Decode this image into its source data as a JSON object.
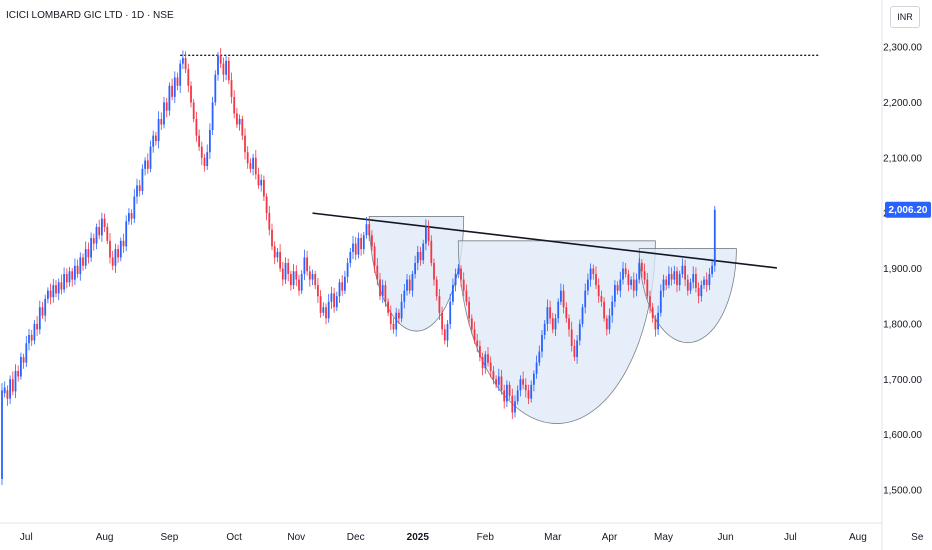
{
  "chart_data": {
    "type": "candlestick",
    "title": "ICICI LOMBARD GIC LTD · 1D · NSE",
    "currency": "INR",
    "y_axis": {
      "ylim": [
        1460,
        2340
      ],
      "ticks": [
        {
          "value": 2300,
          "label": "2,300.00"
        },
        {
          "value": 2200,
          "label": "2,200.00"
        },
        {
          "value": 2100,
          "label": "2,100.00"
        },
        {
          "value": 2000,
          "label": "2,000.00"
        },
        {
          "value": 1900,
          "label": "1,900.00"
        },
        {
          "value": 1800,
          "label": "1,800.00"
        },
        {
          "value": 1700,
          "label": "1,700.00"
        },
        {
          "value": 1600,
          "label": "1,600.00"
        },
        {
          "value": 1500,
          "label": "1,500.00"
        }
      ]
    },
    "x_axis": {
      "ticks": [
        {
          "label": "Jul",
          "bar": 10,
          "bold": false
        },
        {
          "label": "Aug",
          "bar": 39,
          "bold": false
        },
        {
          "label": "Sep",
          "bar": 63,
          "bold": false
        },
        {
          "label": "Oct",
          "bar": 87,
          "bold": false
        },
        {
          "label": "Nov",
          "bar": 110,
          "bold": false
        },
        {
          "label": "Dec",
          "bar": 132,
          "bold": false
        },
        {
          "label": "2025",
          "bar": 155,
          "bold": true
        },
        {
          "label": "Feb",
          "bar": 180,
          "bold": false
        },
        {
          "label": "Mar",
          "bar": 205,
          "bold": false
        },
        {
          "label": "Apr",
          "bar": 226,
          "bold": false
        },
        {
          "label": "May",
          "bar": 246,
          "bold": false
        },
        {
          "label": "Jun",
          "bar": 269,
          "bold": false
        },
        {
          "label": "Jul",
          "bar": 293,
          "bold": false
        },
        {
          "label": "Aug",
          "bar": 318,
          "bold": false
        },
        {
          "label": "Se",
          "bar": 340,
          "bold": false
        }
      ]
    },
    "last_price": {
      "value": 2006.2,
      "label": "2,006.20"
    },
    "colors": {
      "up": "#2962ff",
      "down": "#f23645",
      "price_tag": "#2962ff",
      "cup_fill": "#dde9f7",
      "cup_stroke": "#7b8087"
    },
    "resistance_line": {
      "value": 2285,
      "from_bar": 67,
      "to_bar": 304
    },
    "trendline": {
      "from": {
        "bar": 116,
        "value": 2000
      },
      "to": {
        "bar": 288,
        "value": 1901
      }
    },
    "cups": [
      {
        "left_bar": 137,
        "right_bar": 172,
        "rim_value": 1994,
        "bottom_value": 1787
      },
      {
        "left_bar": 170,
        "right_bar": 243,
        "rim_value": 1950,
        "bottom_value": 1620
      },
      {
        "left_bar": 237,
        "right_bar": 273,
        "rim_value": 1936,
        "bottom_value": 1766
      }
    ],
    "candles": [
      [
        1,
        1520,
        1680
      ],
      [
        2,
        1675,
        1685
      ],
      [
        3,
        1680,
        1665
      ],
      [
        4,
        1665,
        1700
      ],
      [
        5,
        1700,
        1678
      ],
      [
        6,
        1678,
        1715
      ],
      [
        7,
        1715,
        1705
      ],
      [
        8,
        1705,
        1740
      ],
      [
        9,
        1740,
        1730
      ],
      [
        10,
        1730,
        1765
      ],
      [
        11,
        1765,
        1780
      ],
      [
        12,
        1780,
        1770
      ],
      [
        13,
        1770,
        1800
      ],
      [
        14,
        1800,
        1790
      ],
      [
        15,
        1790,
        1830
      ],
      [
        16,
        1830,
        1815
      ],
      [
        17,
        1815,
        1845
      ],
      [
        18,
        1845,
        1860
      ],
      [
        19,
        1860,
        1848
      ],
      [
        20,
        1848,
        1870
      ],
      [
        21,
        1870,
        1855
      ],
      [
        22,
        1855,
        1875
      ],
      [
        23,
        1875,
        1862
      ],
      [
        24,
        1862,
        1890
      ],
      [
        25,
        1890,
        1875
      ],
      [
        26,
        1875,
        1895
      ],
      [
        27,
        1895,
        1880
      ],
      [
        28,
        1880,
        1905
      ],
      [
        29,
        1905,
        1890
      ],
      [
        30,
        1890,
        1920
      ],
      [
        31,
        1920,
        1905
      ],
      [
        32,
        1905,
        1935
      ],
      [
        33,
        1935,
        1920
      ],
      [
        34,
        1920,
        1955
      ],
      [
        35,
        1955,
        1945
      ],
      [
        36,
        1945,
        1975
      ],
      [
        37,
        1975,
        1960
      ],
      [
        38,
        1960,
        1990
      ],
      [
        39,
        1990,
        1975
      ],
      [
        40,
        1975,
        1950
      ],
      [
        41,
        1950,
        1920
      ],
      [
        42,
        1920,
        1905
      ],
      [
        43,
        1905,
        1935
      ],
      [
        44,
        1935,
        1920
      ],
      [
        45,
        1920,
        1950
      ],
      [
        46,
        1950,
        1940
      ],
      [
        47,
        1940,
        1985
      ],
      [
        48,
        1985,
        2000
      ],
      [
        49,
        2000,
        1990
      ],
      [
        50,
        1990,
        2030
      ],
      [
        51,
        2030,
        2050
      ],
      [
        52,
        2050,
        2040
      ],
      [
        53,
        2040,
        2080
      ],
      [
        54,
        2080,
        2095
      ],
      [
        55,
        2095,
        2080
      ],
      [
        56,
        2080,
        2120
      ],
      [
        57,
        2120,
        2140
      ],
      [
        58,
        2140,
        2130
      ],
      [
        59,
        2130,
        2170
      ],
      [
        60,
        2170,
        2160
      ],
      [
        61,
        2160,
        2200
      ],
      [
        62,
        2200,
        2185
      ],
      [
        63,
        2185,
        2230
      ],
      [
        64,
        2230,
        2210
      ],
      [
        65,
        2210,
        2245
      ],
      [
        66,
        2245,
        2230
      ],
      [
        67,
        2230,
        2270
      ],
      [
        68,
        2270,
        2280
      ],
      [
        69,
        2280,
        2260
      ],
      [
        70,
        2260,
        2230
      ],
      [
        71,
        2230,
        2200
      ],
      [
        72,
        2200,
        2170
      ],
      [
        73,
        2170,
        2140
      ],
      [
        74,
        2140,
        2120
      ],
      [
        75,
        2120,
        2100
      ],
      [
        76,
        2100,
        2085
      ],
      [
        77,
        2085,
        2110
      ],
      [
        78,
        2110,
        2150
      ],
      [
        79,
        2150,
        2200
      ],
      [
        80,
        2200,
        2250
      ],
      [
        81,
        2250,
        2285
      ],
      [
        82,
        2285,
        2270
      ],
      [
        83,
        2270,
        2250
      ],
      [
        84,
        2250,
        2275
      ],
      [
        85,
        2275,
        2240
      ],
      [
        86,
        2240,
        2210
      ],
      [
        87,
        2210,
        2180
      ],
      [
        88,
        2180,
        2160
      ],
      [
        89,
        2160,
        2170
      ],
      [
        90,
        2170,
        2140
      ],
      [
        91,
        2140,
        2110
      ],
      [
        92,
        2110,
        2090
      ],
      [
        93,
        2090,
        2080
      ],
      [
        94,
        2080,
        2100
      ],
      [
        95,
        2100,
        2070
      ],
      [
        96,
        2070,
        2050
      ],
      [
        97,
        2050,
        2060
      ],
      [
        98,
        2060,
        2030
      ],
      [
        99,
        2030,
        2000
      ],
      [
        100,
        2000,
        1970
      ],
      [
        101,
        1970,
        1940
      ],
      [
        102,
        1940,
        1920
      ],
      [
        103,
        1920,
        1930
      ],
      [
        104,
        1930,
        1900
      ],
      [
        105,
        1900,
        1880
      ],
      [
        106,
        1880,
        1910
      ],
      [
        107,
        1910,
        1890
      ],
      [
        108,
        1890,
        1870
      ],
      [
        109,
        1870,
        1895
      ],
      [
        110,
        1895,
        1880
      ],
      [
        111,
        1880,
        1860
      ],
      [
        112,
        1860,
        1890
      ],
      [
        113,
        1890,
        1920
      ],
      [
        114,
        1920,
        1895
      ],
      [
        115,
        1895,
        1880
      ],
      [
        116,
        1880,
        1890
      ],
      [
        117,
        1890,
        1870
      ],
      [
        118,
        1870,
        1850
      ],
      [
        119,
        1850,
        1820
      ],
      [
        120,
        1820,
        1830
      ],
      [
        121,
        1830,
        1810
      ],
      [
        122,
        1810,
        1840
      ],
      [
        123,
        1840,
        1855
      ],
      [
        124,
        1855,
        1830
      ],
      [
        125,
        1830,
        1850
      ],
      [
        126,
        1850,
        1875
      ],
      [
        127,
        1875,
        1860
      ],
      [
        128,
        1860,
        1885
      ],
      [
        129,
        1885,
        1910
      ],
      [
        130,
        1910,
        1930
      ],
      [
        131,
        1930,
        1945
      ],
      [
        132,
        1945,
        1925
      ],
      [
        133,
        1925,
        1955
      ],
      [
        134,
        1955,
        1935
      ],
      [
        135,
        1935,
        1960
      ],
      [
        136,
        1960,
        1980
      ],
      [
        137,
        1980,
        1960
      ],
      [
        138,
        1960,
        1940
      ],
      [
        139,
        1940,
        1905
      ],
      [
        140,
        1905,
        1880
      ],
      [
        141,
        1880,
        1850
      ],
      [
        142,
        1850,
        1870
      ],
      [
        143,
        1870,
        1840
      ],
      [
        144,
        1840,
        1820
      ],
      [
        145,
        1820,
        1800
      ],
      [
        146,
        1800,
        1790
      ],
      [
        147,
        1790,
        1820
      ],
      [
        148,
        1820,
        1810
      ],
      [
        149,
        1810,
        1840
      ],
      [
        150,
        1840,
        1860
      ],
      [
        151,
        1860,
        1880
      ],
      [
        152,
        1880,
        1860
      ],
      [
        153,
        1860,
        1890
      ],
      [
        154,
        1890,
        1910
      ],
      [
        155,
        1910,
        1930
      ],
      [
        156,
        1930,
        1915
      ],
      [
        157,
        1915,
        1945
      ],
      [
        158,
        1945,
        1975
      ],
      [
        159,
        1975,
        1950
      ],
      [
        160,
        1950,
        1910
      ],
      [
        161,
        1910,
        1880
      ],
      [
        162,
        1880,
        1850
      ],
      [
        163,
        1850,
        1820
      ],
      [
        164,
        1820,
        1790
      ],
      [
        165,
        1790,
        1770
      ],
      [
        166,
        1770,
        1800
      ],
      [
        167,
        1800,
        1840
      ],
      [
        168,
        1840,
        1870
      ],
      [
        169,
        1870,
        1890
      ],
      [
        170,
        1890,
        1900
      ],
      [
        171,
        1900,
        1880
      ],
      [
        172,
        1880,
        1860
      ],
      [
        173,
        1860,
        1840
      ],
      [
        174,
        1840,
        1810
      ],
      [
        175,
        1810,
        1790
      ],
      [
        176,
        1790,
        1770
      ],
      [
        177,
        1770,
        1760
      ],
      [
        178,
        1760,
        1740
      ],
      [
        179,
        1740,
        1720
      ],
      [
        180,
        1720,
        1745
      ],
      [
        181,
        1745,
        1730
      ],
      [
        182,
        1730,
        1715
      ],
      [
        183,
        1715,
        1700
      ],
      [
        184,
        1700,
        1690
      ],
      [
        185,
        1690,
        1705
      ],
      [
        186,
        1705,
        1680
      ],
      [
        187,
        1680,
        1660
      ],
      [
        188,
        1660,
        1690
      ],
      [
        189,
        1690,
        1670
      ],
      [
        190,
        1670,
        1640
      ],
      [
        191,
        1640,
        1660
      ],
      [
        192,
        1660,
        1680
      ],
      [
        193,
        1680,
        1700
      ],
      [
        194,
        1700,
        1690
      ],
      [
        195,
        1690,
        1680
      ],
      [
        196,
        1680,
        1665
      ],
      [
        197,
        1665,
        1690
      ],
      [
        198,
        1690,
        1710
      ],
      [
        199,
        1710,
        1730
      ],
      [
        200,
        1730,
        1750
      ],
      [
        201,
        1750,
        1780
      ],
      [
        202,
        1780,
        1800
      ],
      [
        203,
        1800,
        1830
      ],
      [
        204,
        1830,
        1810
      ],
      [
        205,
        1810,
        1790
      ],
      [
        206,
        1790,
        1810
      ],
      [
        207,
        1810,
        1840
      ],
      [
        208,
        1840,
        1860
      ],
      [
        209,
        1860,
        1830
      ],
      [
        210,
        1830,
        1810
      ],
      [
        211,
        1810,
        1790
      ],
      [
        212,
        1790,
        1760
      ],
      [
        213,
        1760,
        1740
      ],
      [
        214,
        1740,
        1770
      ],
      [
        215,
        1770,
        1800
      ],
      [
        216,
        1800,
        1830
      ],
      [
        217,
        1830,
        1860
      ],
      [
        218,
        1860,
        1880
      ],
      [
        219,
        1880,
        1900
      ],
      [
        220,
        1900,
        1890
      ],
      [
        221,
        1890,
        1870
      ],
      [
        222,
        1870,
        1850
      ],
      [
        223,
        1850,
        1840
      ],
      [
        224,
        1840,
        1810
      ],
      [
        225,
        1810,
        1790
      ],
      [
        226,
        1790,
        1815
      ],
      [
        227,
        1815,
        1840
      ],
      [
        228,
        1840,
        1870
      ],
      [
        229,
        1870,
        1860
      ],
      [
        230,
        1860,
        1880
      ],
      [
        231,
        1880,
        1900
      ],
      [
        232,
        1900,
        1890
      ],
      [
        233,
        1890,
        1870
      ],
      [
        234,
        1870,
        1880
      ],
      [
        235,
        1880,
        1860
      ],
      [
        236,
        1860,
        1880
      ],
      [
        237,
        1880,
        1910
      ],
      [
        238,
        1910,
        1895
      ],
      [
        239,
        1895,
        1880
      ],
      [
        240,
        1880,
        1850
      ],
      [
        241,
        1850,
        1830
      ],
      [
        242,
        1830,
        1810
      ],
      [
        243,
        1810,
        1790
      ],
      [
        244,
        1790,
        1820
      ],
      [
        245,
        1820,
        1860
      ],
      [
        246,
        1860,
        1880
      ],
      [
        247,
        1880,
        1870
      ],
      [
        248,
        1870,
        1890
      ],
      [
        249,
        1890,
        1880
      ],
      [
        250,
        1880,
        1895
      ],
      [
        251,
        1895,
        1870
      ],
      [
        252,
        1870,
        1890
      ],
      [
        253,
        1890,
        1905
      ],
      [
        254,
        1905,
        1880
      ],
      [
        255,
        1880,
        1860
      ],
      [
        256,
        1860,
        1875
      ],
      [
        257,
        1875,
        1890
      ],
      [
        258,
        1890,
        1865
      ],
      [
        259,
        1865,
        1850
      ],
      [
        260,
        1850,
        1870
      ],
      [
        261,
        1870,
        1880
      ],
      [
        262,
        1880,
        1870
      ],
      [
        263,
        1870,
        1890
      ],
      [
        264,
        1890,
        1905
      ],
      [
        265,
        1905,
        2006
      ]
    ]
  }
}
